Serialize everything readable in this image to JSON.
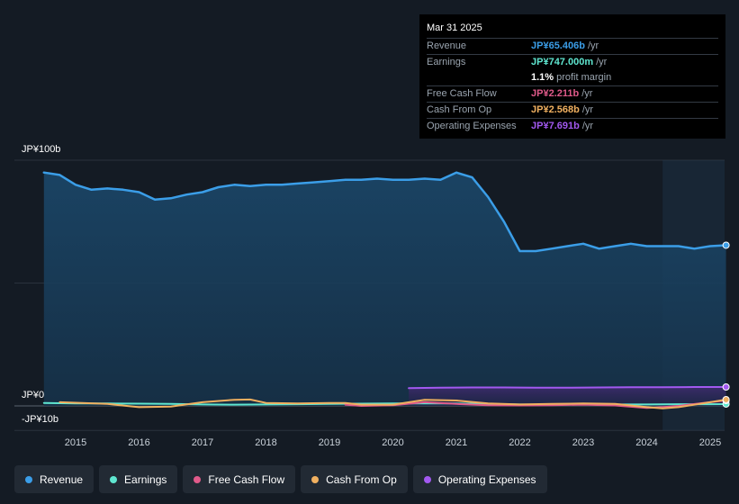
{
  "tooltip": {
    "date": "Mar 31 2025",
    "rows": [
      {
        "label": "Revenue",
        "value": "JP¥65.406b",
        "unit": "/yr",
        "color": "#3b9ee8"
      },
      {
        "label": "Earnings",
        "value": "JP¥747.000m",
        "unit": "/yr",
        "color": "#5fe6d0"
      },
      {
        "label": "",
        "value": "1.1%",
        "unit": "profit margin",
        "color": "#ffffff"
      },
      {
        "label": "Free Cash Flow",
        "value": "JP¥2.211b",
        "unit": "/yr",
        "color": "#e05a8a"
      },
      {
        "label": "Cash From Op",
        "value": "JP¥2.568b",
        "unit": "/yr",
        "color": "#f0b060"
      },
      {
        "label": "Operating Expenses",
        "value": "JP¥7.691b",
        "unit": "/yr",
        "color": "#a259f0"
      }
    ]
  },
  "axis": {
    "y_top_label": "JP¥100b",
    "y_zero_label": "JP¥0",
    "y_bottom_label": "-JP¥10b"
  },
  "legend": [
    {
      "label": "Revenue",
      "color": "#3b9ee8"
    },
    {
      "label": "Earnings",
      "color": "#5fe6d0"
    },
    {
      "label": "Free Cash Flow",
      "color": "#e05a8a"
    },
    {
      "label": "Cash From Op",
      "color": "#f0b060"
    },
    {
      "label": "Operating Expenses",
      "color": "#a259f0"
    }
  ],
  "chart_data": {
    "type": "area",
    "x_ticks": [
      "2015",
      "2016",
      "2017",
      "2018",
      "2019",
      "2020",
      "2021",
      "2022",
      "2023",
      "2024",
      "2025"
    ],
    "ylim": [
      -10,
      100
    ],
    "series": [
      {
        "name": "Revenue",
        "color": "#3b9ee8",
        "points": [
          [
            2014.5,
            95
          ],
          [
            2014.75,
            94
          ],
          [
            2015.0,
            90
          ],
          [
            2015.25,
            88
          ],
          [
            2015.5,
            88.5
          ],
          [
            2015.75,
            88
          ],
          [
            2016.0,
            87
          ],
          [
            2016.25,
            84
          ],
          [
            2016.5,
            84.5
          ],
          [
            2016.75,
            86
          ],
          [
            2017.0,
            87
          ],
          [
            2017.25,
            89
          ],
          [
            2017.5,
            90
          ],
          [
            2017.75,
            89.5
          ],
          [
            2018.0,
            90
          ],
          [
            2018.25,
            90
          ],
          [
            2018.5,
            90.5
          ],
          [
            2018.75,
            91
          ],
          [
            2019.0,
            91.5
          ],
          [
            2019.25,
            92
          ],
          [
            2019.5,
            92
          ],
          [
            2019.75,
            92.5
          ],
          [
            2020.0,
            92
          ],
          [
            2020.25,
            92
          ],
          [
            2020.5,
            92.5
          ],
          [
            2020.75,
            92
          ],
          [
            2021.0,
            95
          ],
          [
            2021.25,
            93
          ],
          [
            2021.5,
            85
          ],
          [
            2021.75,
            75
          ],
          [
            2022.0,
            63
          ],
          [
            2022.25,
            63
          ],
          [
            2022.5,
            64
          ],
          [
            2022.75,
            65
          ],
          [
            2023.0,
            66
          ],
          [
            2023.25,
            64
          ],
          [
            2023.5,
            65
          ],
          [
            2023.75,
            66
          ],
          [
            2024.0,
            65
          ],
          [
            2024.25,
            65
          ],
          [
            2024.5,
            65
          ],
          [
            2024.75,
            64
          ],
          [
            2025.0,
            65
          ],
          [
            2025.25,
            65.4
          ]
        ]
      },
      {
        "name": "Earnings",
        "color": "#5fe6d0",
        "points": [
          [
            2014.5,
            1.2
          ],
          [
            2015.0,
            1.0
          ],
          [
            2015.5,
            1.0
          ],
          [
            2016.0,
            0.9
          ],
          [
            2016.5,
            0.8
          ],
          [
            2017.0,
            0.6
          ],
          [
            2017.5,
            0.5
          ],
          [
            2018.0,
            0.6
          ],
          [
            2018.5,
            0.7
          ],
          [
            2019.0,
            0.8
          ],
          [
            2019.5,
            0.9
          ],
          [
            2020.0,
            1.0
          ],
          [
            2020.5,
            1.0
          ],
          [
            2021.0,
            1.0
          ],
          [
            2021.5,
            0.8
          ],
          [
            2022.0,
            0.6
          ],
          [
            2022.5,
            0.5
          ],
          [
            2023.0,
            0.6
          ],
          [
            2023.5,
            0.6
          ],
          [
            2024.0,
            0.6
          ],
          [
            2024.5,
            0.7
          ],
          [
            2025.0,
            0.7
          ],
          [
            2025.25,
            0.75
          ]
        ]
      },
      {
        "name": "Free Cash Flow",
        "color": "#e05a8a",
        "points": [
          [
            2019.25,
            0.5
          ],
          [
            2019.5,
            0.0
          ],
          [
            2020.0,
            0.3
          ],
          [
            2020.5,
            1.5
          ],
          [
            2021.0,
            0.8
          ],
          [
            2021.5,
            0.3
          ],
          [
            2022.0,
            0.2
          ],
          [
            2022.5,
            0.3
          ],
          [
            2023.0,
            0.5
          ],
          [
            2023.5,
            0.2
          ],
          [
            2024.0,
            -0.8
          ],
          [
            2024.25,
            -0.5
          ],
          [
            2024.5,
            0.0
          ],
          [
            2025.0,
            1.5
          ],
          [
            2025.25,
            2.2
          ]
        ]
      },
      {
        "name": "Cash From Op",
        "color": "#f0b060",
        "points": [
          [
            2014.75,
            1.5
          ],
          [
            2015.0,
            1.3
          ],
          [
            2015.5,
            0.8
          ],
          [
            2016.0,
            -0.5
          ],
          [
            2016.5,
            -0.3
          ],
          [
            2017.0,
            1.5
          ],
          [
            2017.5,
            2.5
          ],
          [
            2017.75,
            2.6
          ],
          [
            2018.0,
            1.2
          ],
          [
            2018.5,
            1.0
          ],
          [
            2019.0,
            1.2
          ],
          [
            2019.25,
            1.2
          ],
          [
            2019.5,
            0.5
          ],
          [
            2020.0,
            0.5
          ],
          [
            2020.5,
            2.5
          ],
          [
            2021.0,
            2.2
          ],
          [
            2021.5,
            1.0
          ],
          [
            2022.0,
            0.6
          ],
          [
            2022.5,
            0.8
          ],
          [
            2023.0,
            1.0
          ],
          [
            2023.5,
            0.8
          ],
          [
            2024.0,
            -0.5
          ],
          [
            2024.25,
            -1.0
          ],
          [
            2024.5,
            -0.5
          ],
          [
            2025.0,
            1.5
          ],
          [
            2025.25,
            2.57
          ]
        ]
      },
      {
        "name": "Operating Expenses",
        "color": "#a259f0",
        "points": [
          [
            2020.25,
            7.2
          ],
          [
            2020.75,
            7.4
          ],
          [
            2021.25,
            7.5
          ],
          [
            2021.75,
            7.5
          ],
          [
            2022.25,
            7.4
          ],
          [
            2022.75,
            7.4
          ],
          [
            2023.25,
            7.5
          ],
          [
            2023.75,
            7.6
          ],
          [
            2024.25,
            7.6
          ],
          [
            2024.75,
            7.7
          ],
          [
            2025.25,
            7.69
          ]
        ]
      }
    ]
  }
}
